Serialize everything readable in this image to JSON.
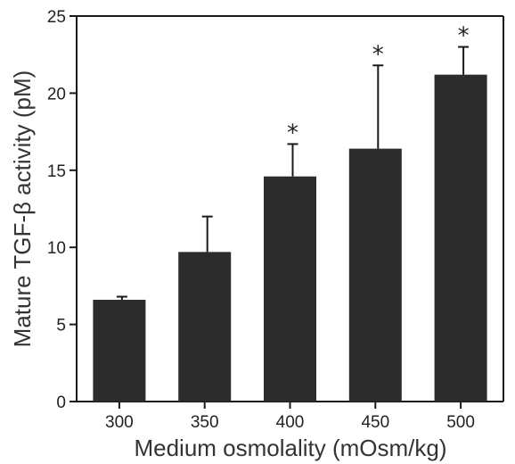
{
  "chart_data": {
    "type": "bar",
    "categories": [
      "300",
      "350",
      "400",
      "450",
      "500"
    ],
    "values": [
      6.6,
      9.7,
      14.6,
      16.4,
      21.2
    ],
    "error_upper": [
      6.8,
      12.0,
      16.7,
      21.8,
      23.0
    ],
    "significance": [
      "",
      "",
      "*",
      "*",
      "*"
    ],
    "xlabel": "Medium osmolality (mOsm/kg)",
    "ylabel": "Mature TGF-β activity (pM)",
    "ylim": [
      0,
      25
    ],
    "yticks": [
      "0",
      "5",
      "10",
      "15",
      "20",
      "25"
    ],
    "grid": false,
    "bar_color": "#2c2c2c"
  }
}
